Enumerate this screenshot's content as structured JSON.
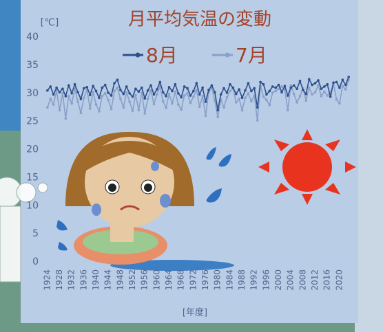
{
  "chart_data": {
    "type": "line",
    "title": "月平均気温の変動",
    "y_unit": "[℃]",
    "x_label": "[年度]",
    "x": [
      1924,
      1925,
      1926,
      1927,
      1928,
      1929,
      1930,
      1931,
      1932,
      1933,
      1934,
      1935,
      1936,
      1937,
      1938,
      1939,
      1940,
      1941,
      1942,
      1943,
      1944,
      1945,
      1946,
      1947,
      1948,
      1949,
      1950,
      1951,
      1952,
      1953,
      1954,
      1955,
      1956,
      1957,
      1958,
      1959,
      1960,
      1961,
      1962,
      1963,
      1964,
      1965,
      1966,
      1967,
      1968,
      1969,
      1970,
      1971,
      1972,
      1973,
      1974,
      1975,
      1976,
      1977,
      1978,
      1979,
      1980,
      1981,
      1982,
      1983,
      1984,
      1985,
      1986,
      1987,
      1988,
      1989,
      1990,
      1991,
      1992,
      1993,
      1994,
      1995,
      1996,
      1997,
      1998,
      1999,
      2000,
      2001,
      2002,
      2003,
      2004,
      2005,
      2006,
      2007,
      2008,
      2009,
      2010,
      2011,
      2012,
      2013,
      2014,
      2015,
      2016,
      2017,
      2018,
      2019,
      2020,
      2021,
      2022,
      2023
    ],
    "series": [
      {
        "name": "8月",
        "color": "#2d4f8c",
        "values": [
          30.5,
          31.2,
          29.8,
          31.0,
          30.2,
          30.8,
          29.5,
          31.4,
          30.0,
          31.6,
          30.2,
          29.0,
          30.9,
          31.1,
          29.7,
          31.3,
          30.4,
          29.2,
          31.0,
          31.5,
          30.1,
          29.6,
          31.8,
          32.4,
          30.6,
          29.9,
          31.2,
          30.0,
          29.4,
          30.8,
          30.3,
          31.0,
          29.1,
          30.5,
          31.4,
          29.8,
          30.7,
          32.0,
          30.2,
          29.5,
          31.1,
          30.4,
          31.6,
          30.0,
          29.3,
          31.2,
          30.9,
          29.6,
          30.4,
          31.8,
          29.8,
          31.0,
          28.5,
          30.6,
          31.4,
          30.2,
          27.0,
          29.8,
          30.9,
          30.1,
          31.6,
          31.0,
          29.9,
          30.7,
          29.2,
          30.5,
          31.8,
          30.4,
          30.9,
          27.5,
          32.0,
          31.6,
          29.8,
          30.4,
          31.2,
          31.0,
          31.5,
          30.2,
          31.3,
          29.6,
          31.0,
          31.4,
          30.8,
          32.2,
          30.6,
          29.9,
          32.5,
          31.5,
          31.8,
          32.3,
          30.8,
          31.2,
          31.6,
          29.4,
          31.9,
          32.0,
          31.0,
          32.4,
          31.5,
          32.9
        ]
      },
      {
        "name": "7月",
        "color": "#8aa0c8",
        "values": [
          27.5,
          29.0,
          28.0,
          30.5,
          27.0,
          30.0,
          25.5,
          29.5,
          28.2,
          30.8,
          28.5,
          26.5,
          29.2,
          30.6,
          27.3,
          30.2,
          28.0,
          26.8,
          29.5,
          30.0,
          28.8,
          27.2,
          30.4,
          31.0,
          29.0,
          27.5,
          30.2,
          28.5,
          26.9,
          29.7,
          27.0,
          30.1,
          26.4,
          29.0,
          30.5,
          28.1,
          29.8,
          31.2,
          28.6,
          27.4,
          29.9,
          28.2,
          30.3,
          28.0,
          27.1,
          29.6,
          30.0,
          28.3,
          29.4,
          30.6,
          27.6,
          29.5,
          26.0,
          30.2,
          31.0,
          28.7,
          25.8,
          28.9,
          27.5,
          29.3,
          30.4,
          30.9,
          28.4,
          29.0,
          27.0,
          29.2,
          30.0,
          28.6,
          29.6,
          25.2,
          31.3,
          29.4,
          28.8,
          27.9,
          30.1,
          30.4,
          30.8,
          31.2,
          30.6,
          27.0,
          31.4,
          29.9,
          28.4,
          29.5,
          30.9,
          28.7,
          31.0,
          29.8,
          30.2,
          31.4,
          29.5,
          30.3,
          29.6,
          30.1,
          31.8,
          28.9,
          28.2,
          31.3,
          30.7,
          32.4
        ]
      }
    ],
    "xlim": [
      1922,
      2025
    ],
    "ylim": [
      0,
      40
    ],
    "yticks": [
      0,
      5,
      10,
      15,
      20,
      25,
      30,
      35,
      40
    ],
    "xticks": [
      1924,
      1928,
      1932,
      1936,
      1940,
      1944,
      1948,
      1952,
      1956,
      1960,
      1964,
      1968,
      1972,
      1976,
      1980,
      1984,
      1988,
      1992,
      1996,
      2000,
      2004,
      2008,
      2012,
      2016,
      2020
    ],
    "grid": false,
    "legend": "top"
  }
}
